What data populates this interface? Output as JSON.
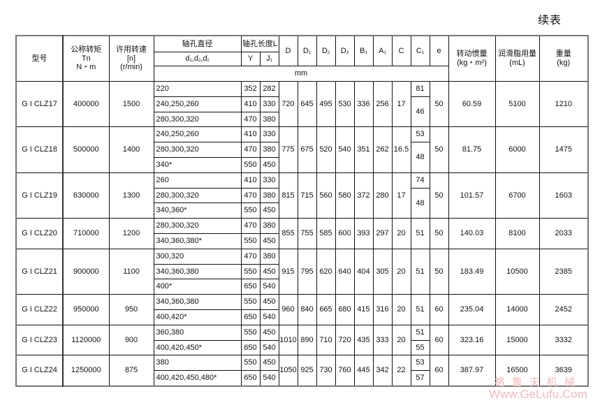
{
  "title": "续表",
  "header": {
    "model": "型号",
    "torque": [
      "公称转矩",
      "Tn",
      "N・m"
    ],
    "speed": [
      "许用转速",
      "[n]",
      "(r/min)"
    ],
    "bore_diameter": "轴孔直径",
    "bore_length": "轴孔长度L",
    "bore_symbols": [
      {
        "main": "d",
        "sub": "1"
      },
      {
        "main": ",d",
        "sub": "2"
      },
      {
        "main": ",d",
        "sub": "z"
      }
    ],
    "Y": "Y",
    "J1": {
      "main": "J",
      "sub": "1"
    },
    "dims": [
      {
        "main": "D",
        "sub": ""
      },
      {
        "main": "D",
        "sub": "1"
      },
      {
        "main": "D",
        "sub": "2"
      },
      {
        "main": "D",
        "sub": "3"
      },
      {
        "main": "B",
        "sub": "1"
      },
      {
        "main": "A",
        "sub": "1"
      },
      {
        "main": "C",
        "sub": ""
      },
      {
        "main": "C",
        "sub": "1"
      },
      {
        "main": "e",
        "sub": ""
      }
    ],
    "unit": "mm",
    "inertia": [
      "转动惯量",
      "(kg・m²)"
    ],
    "grease": [
      "润滑脂用量",
      "(mL)"
    ],
    "weight": [
      "重量",
      "(kg)"
    ]
  },
  "rows": [
    {
      "model": "G I CLZ17",
      "torque": "400000",
      "speed": "1500",
      "bores": [
        [
          "220",
          "352",
          "282"
        ],
        [
          "240,250,260",
          "410",
          "330"
        ],
        [
          "280,300,320",
          "470",
          "380"
        ]
      ],
      "dims": [
        "720",
        "645",
        "495",
        "530",
        "336",
        "256",
        "17"
      ],
      "c1": [
        [
          "81",
          1
        ],
        [
          "46",
          2
        ]
      ],
      "e": "50",
      "inertia": "60.59",
      "grease": "5100",
      "weight": "1210"
    },
    {
      "model": "G I CLZ18",
      "torque": "500000",
      "speed": "1400",
      "bores": [
        [
          "240,250,260",
          "410",
          "330"
        ],
        [
          "280,300,320",
          "470",
          "380"
        ],
        [
          "340*",
          "550",
          "450"
        ]
      ],
      "dims": [
        "775",
        "675",
        "520",
        "540",
        "351",
        "262",
        "16.5"
      ],
      "c1": [
        [
          "53",
          1
        ],
        [
          "48",
          2
        ]
      ],
      "e": "50",
      "inertia": "81.75",
      "grease": "6000",
      "weight": "1475"
    },
    {
      "model": "G I CLZ19",
      "torque": "630000",
      "speed": "1300",
      "bores": [
        [
          "260",
          "410",
          "330"
        ],
        [
          "280,300,320",
          "470",
          "380"
        ],
        [
          "340,360*",
          "550",
          "450"
        ]
      ],
      "dims": [
        "815",
        "715",
        "560",
        "580",
        "372",
        "280",
        "17"
      ],
      "c1": [
        [
          "74",
          1
        ],
        [
          "48",
          2
        ]
      ],
      "e": "50",
      "inertia": "101.57",
      "grease": "6700",
      "weight": "1603"
    },
    {
      "model": "G I CLZ20",
      "torque": "710000",
      "speed": "1200",
      "bores": [
        [
          "280,300,320",
          "470",
          "380"
        ],
        [
          "340,360,380*",
          "550",
          "450"
        ]
      ],
      "dims": [
        "855",
        "755",
        "585",
        "600",
        "393",
        "297",
        "20"
      ],
      "c1": [
        [
          "51",
          2
        ]
      ],
      "e": "50",
      "inertia": "140.03",
      "grease": "8100",
      "weight": "2033"
    },
    {
      "model": "G I CLZ21",
      "torque": "900000",
      "speed": "1100",
      "bores": [
        [
          "300,320",
          "470",
          "380"
        ],
        [
          "340,360,380",
          "550",
          "450"
        ],
        [
          "400*",
          "650",
          "540"
        ]
      ],
      "dims": [
        "915",
        "795",
        "620",
        "640",
        "404",
        "305",
        "20"
      ],
      "c1": [
        [
          "51",
          3
        ]
      ],
      "e": "50",
      "inertia": "183.49",
      "grease": "10500",
      "weight": "2385"
    },
    {
      "model": "G I CLZ22",
      "torque": "950000",
      "speed": "950",
      "bores": [
        [
          "340,360,380",
          "550",
          "450"
        ],
        [
          "400,420*",
          "650",
          "540"
        ]
      ],
      "dims": [
        "960",
        "840",
        "665",
        "680",
        "415",
        "316",
        "20"
      ],
      "c1": [
        [
          "51",
          2
        ]
      ],
      "e": "60",
      "inertia": "235.04",
      "grease": "14000",
      "weight": "2452"
    },
    {
      "model": "G I CLZ23",
      "torque": "1120000",
      "speed": "900",
      "bores": [
        [
          "360,380",
          "550",
          "450"
        ],
        [
          "400,420,450*",
          "650",
          "540"
        ]
      ],
      "dims": [
        "1010",
        "890",
        "710",
        "720",
        "435",
        "333",
        "20"
      ],
      "c1": [
        [
          "51",
          1
        ],
        [
          "55",
          1
        ]
      ],
      "e": "60",
      "inertia": "323.16",
      "grease": "15000",
      "weight": "3332"
    },
    {
      "model": "G I CLZ24",
      "torque": "1250000",
      "speed": "875",
      "bores": [
        [
          "380",
          "550",
          "450"
        ],
        [
          "400,420,450,480*",
          "650",
          "540"
        ]
      ],
      "dims": [
        "1050",
        "925",
        "730",
        "760",
        "445",
        "342",
        "22"
      ],
      "c1": [
        [
          "53",
          1
        ],
        [
          "57",
          1
        ]
      ],
      "e": "60",
      "inertia": "387.97",
      "grease": "16500",
      "weight": "3639"
    }
  ],
  "watermark": {
    "cn": "格鲁夫机械",
    "en": "Www.GeLufu.Com",
    "color": "#f3b9b9"
  }
}
